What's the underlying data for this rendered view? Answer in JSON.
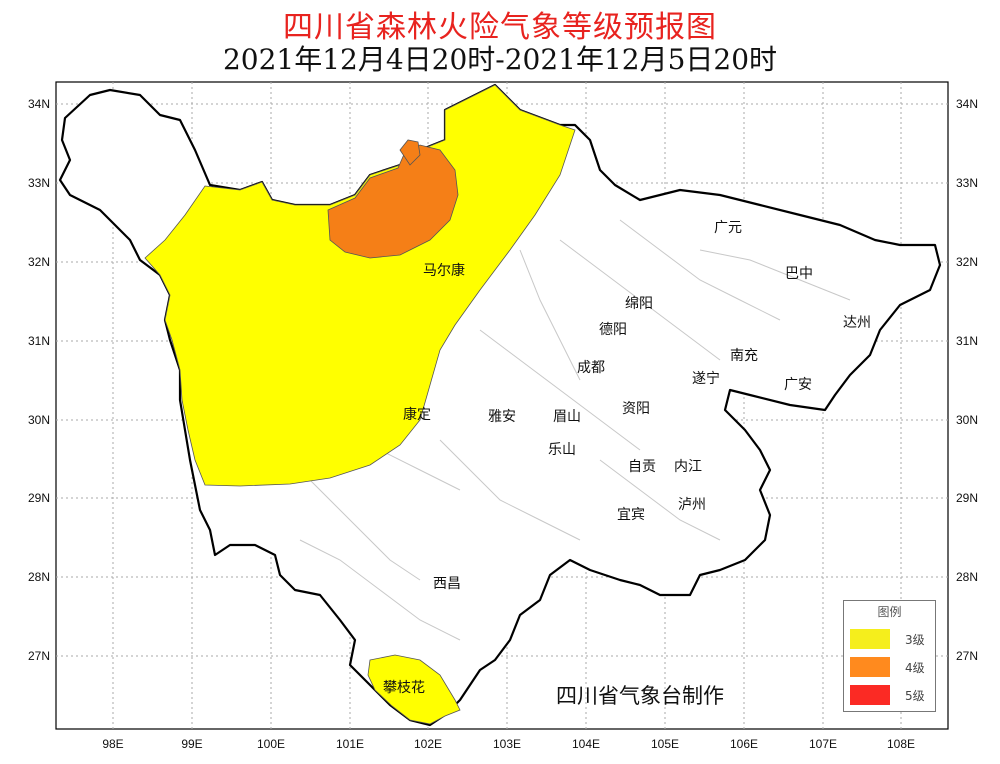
{
  "title": "四川省森林火险气象等级预报图",
  "subtitle": "2021年12月4日20时-2021年12月5日20时",
  "credit": "四川省气象台制作",
  "lon_labels": [
    "98E",
    "99E",
    "100E",
    "101E",
    "102E",
    "103E",
    "104E",
    "105E",
    "106E",
    "107E",
    "108E"
  ],
  "lat_labels": [
    "34N",
    "33N",
    "32N",
    "31N",
    "30N",
    "29N",
    "28N",
    "27N"
  ],
  "cities": [
    "马尔康",
    "康定",
    "西昌",
    "攀枝花",
    "广元",
    "巴中",
    "绵阳",
    "德阳",
    "达州",
    "成都",
    "南充",
    "遂宁",
    "广安",
    "雅安",
    "眉山",
    "资阳",
    "乐山",
    "自贡",
    "内江",
    "泸州",
    "宜宾"
  ],
  "legend": {
    "title": "图例",
    "items": [
      {
        "label": "3级",
        "color": "#f5ee1c"
      },
      {
        "label": "4级",
        "color": "#ff8a1e"
      },
      {
        "label": "5级",
        "color": "#fb2a24"
      }
    ]
  },
  "colors": {
    "level3": "#ffff00",
    "level4": "#f57f17",
    "title": "#e8231f",
    "border": "#000000"
  }
}
